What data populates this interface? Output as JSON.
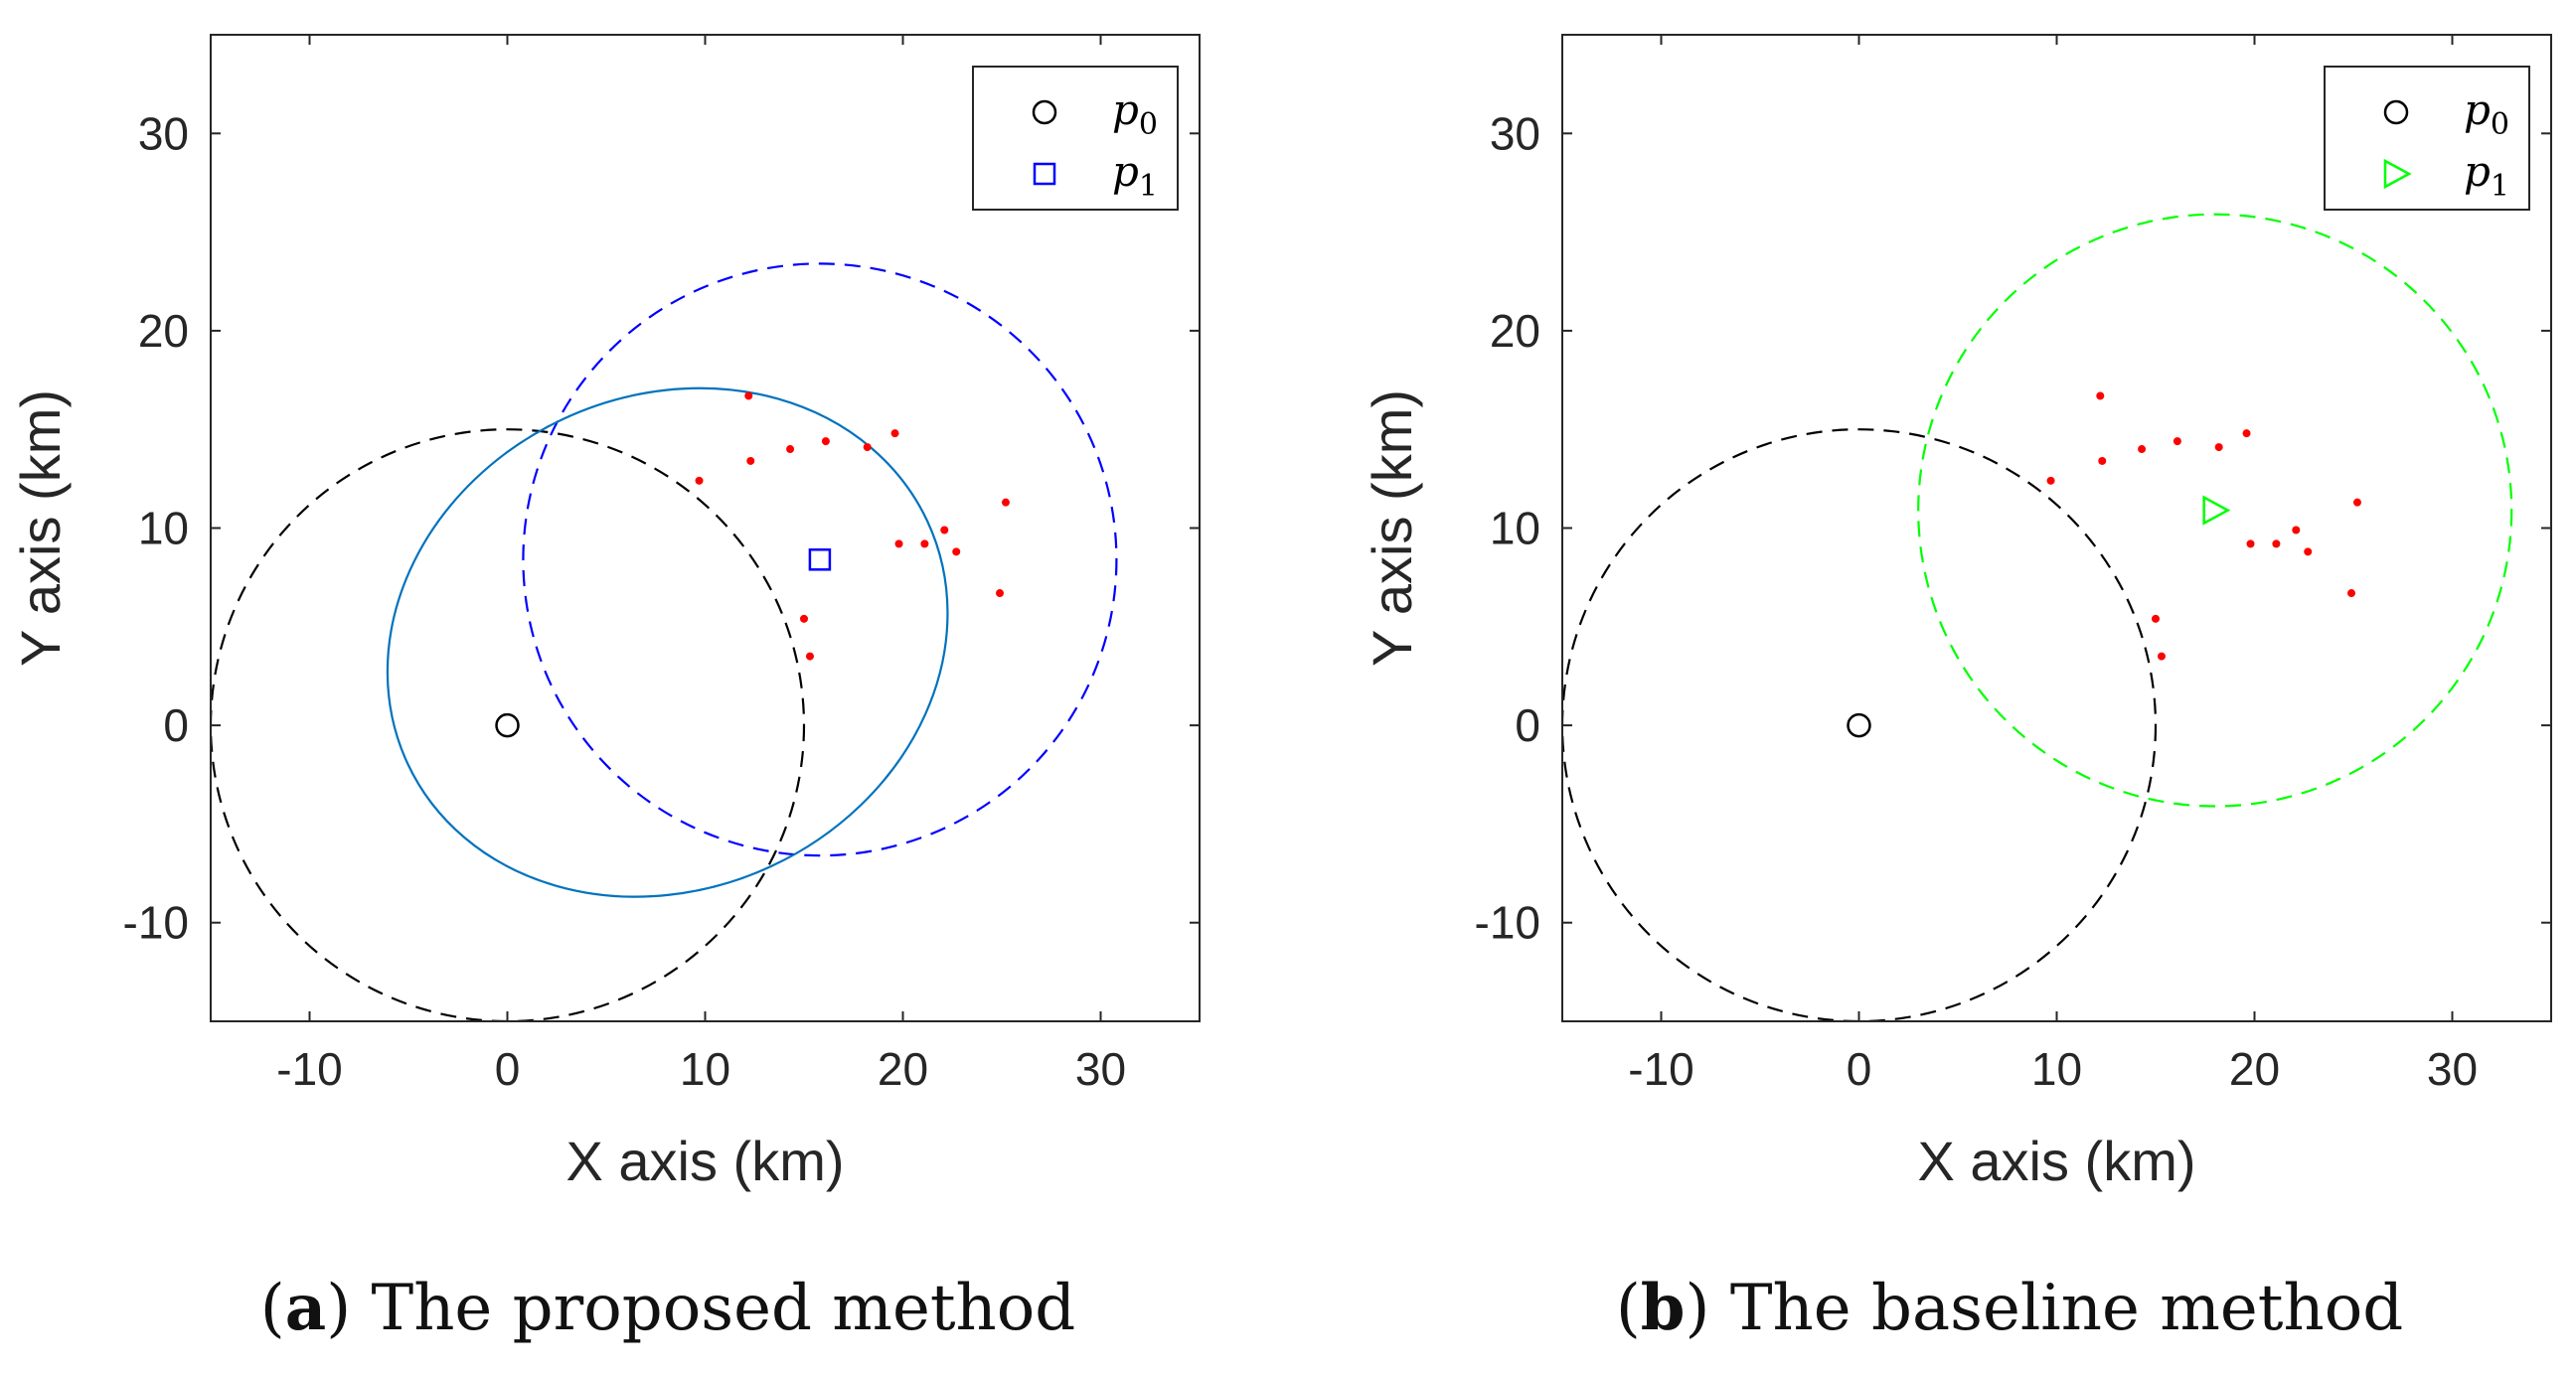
{
  "chart_data": [
    {
      "type": "scatter",
      "panel_tag": "a",
      "caption": "The proposed method",
      "xlabel": "X axis (km)",
      "ylabel": "Y axis (km)",
      "xlim": [
        -15,
        35
      ],
      "ylim": [
        -15,
        35
      ],
      "xticks": [
        -10,
        0,
        10,
        20,
        30
      ],
      "yticks": [
        -10,
        0,
        10,
        20,
        30
      ],
      "grid": false,
      "legend_position": "top-right",
      "legend": [
        {
          "symbol": "circle",
          "color": "#000000",
          "label": "p",
          "subscript": "0"
        },
        {
          "symbol": "square",
          "color": "#0000ff",
          "label": "p",
          "subscript": "1"
        }
      ],
      "p0": {
        "x": 0,
        "y": 0,
        "color": "#000000",
        "marker": "circle"
      },
      "p1": {
        "x": 15.8,
        "y": 8.4,
        "color": "#0000ff",
        "marker": "square"
      },
      "circles": [
        {
          "cx": 0,
          "cy": 0,
          "r": 15,
          "color": "#000000",
          "style": "dashed"
        },
        {
          "cx": 15.8,
          "cy": 8.4,
          "r": 15,
          "color": "#0000ff",
          "style": "dashed"
        }
      ],
      "ellipse": {
        "cx": 8.1,
        "cy": 4.2,
        "rx": 14.5,
        "ry": 12.5,
        "angle_deg": 25,
        "color": "#0072bd",
        "style": "solid"
      },
      "points_color": "#ff0000",
      "points": [
        {
          "x": 9.7,
          "y": 12.4
        },
        {
          "x": 12.2,
          "y": 16.7
        },
        {
          "x": 12.3,
          "y": 13.4
        },
        {
          "x": 14.3,
          "y": 14.0
        },
        {
          "x": 16.1,
          "y": 14.4
        },
        {
          "x": 18.2,
          "y": 14.1
        },
        {
          "x": 19.6,
          "y": 14.8
        },
        {
          "x": 19.8,
          "y": 9.2
        },
        {
          "x": 21.1,
          "y": 9.2
        },
        {
          "x": 22.1,
          "y": 9.9
        },
        {
          "x": 22.7,
          "y": 8.8
        },
        {
          "x": 25.2,
          "y": 11.3
        },
        {
          "x": 24.9,
          "y": 6.7
        },
        {
          "x": 15.0,
          "y": 5.4
        },
        {
          "x": 15.3,
          "y": 3.5
        }
      ]
    },
    {
      "type": "scatter",
      "panel_tag": "b",
      "caption": "The baseline method",
      "xlabel": "X axis (km)",
      "ylabel": "Y axis (km)",
      "xlim": [
        -15,
        35
      ],
      "ylim": [
        -15,
        35
      ],
      "xticks": [
        -10,
        0,
        10,
        20,
        30
      ],
      "yticks": [
        -10,
        0,
        10,
        20,
        30
      ],
      "grid": false,
      "legend_position": "top-right",
      "legend": [
        {
          "symbol": "circle",
          "color": "#000000",
          "label": "p",
          "subscript": "0"
        },
        {
          "symbol": "triangle-right",
          "color": "#00ff00",
          "label": "p",
          "subscript": "1"
        }
      ],
      "p0": {
        "x": 0,
        "y": 0,
        "color": "#000000",
        "marker": "circle"
      },
      "p1": {
        "x": 18.0,
        "y": 10.9,
        "color": "#00ff00",
        "marker": "triangle-right"
      },
      "circles": [
        {
          "cx": 0,
          "cy": 0,
          "r": 15,
          "color": "#000000",
          "style": "dashed"
        },
        {
          "cx": 18.0,
          "cy": 10.9,
          "r": 15,
          "color": "#00ff00",
          "style": "dashed"
        }
      ],
      "points_color": "#ff0000",
      "points": [
        {
          "x": 9.7,
          "y": 12.4
        },
        {
          "x": 12.2,
          "y": 16.7
        },
        {
          "x": 12.3,
          "y": 13.4
        },
        {
          "x": 14.3,
          "y": 14.0
        },
        {
          "x": 16.1,
          "y": 14.4
        },
        {
          "x": 18.2,
          "y": 14.1
        },
        {
          "x": 19.6,
          "y": 14.8
        },
        {
          "x": 19.8,
          "y": 9.2
        },
        {
          "x": 21.1,
          "y": 9.2
        },
        {
          "x": 22.1,
          "y": 9.9
        },
        {
          "x": 22.7,
          "y": 8.8
        },
        {
          "x": 25.2,
          "y": 11.3
        },
        {
          "x": 24.9,
          "y": 6.7
        },
        {
          "x": 15.0,
          "y": 5.4
        },
        {
          "x": 15.3,
          "y": 3.5
        }
      ]
    }
  ]
}
